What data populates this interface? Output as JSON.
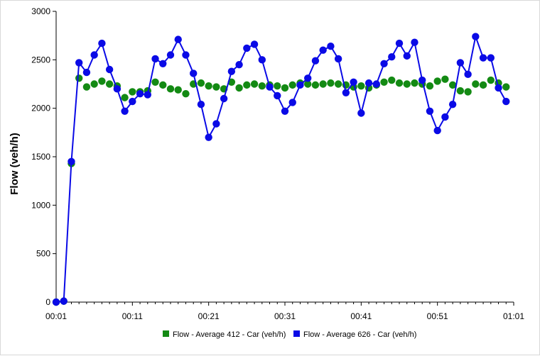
{
  "chart_data": {
    "type": "line",
    "title": "",
    "xlabel": "",
    "ylabel": "Flow (veh/h)",
    "ylim": [
      0,
      3000
    ],
    "yticks": [
      0,
      500,
      1000,
      1500,
      2000,
      2500,
      3000
    ],
    "xlim_minutes": [
      1,
      61
    ],
    "xticks": [
      {
        "value": 1,
        "label": "00:01"
      },
      {
        "value": 11,
        "label": "00:11"
      },
      {
        "value": 21,
        "label": "00:21"
      },
      {
        "value": 31,
        "label": "00:31"
      },
      {
        "value": 41,
        "label": "00:41"
      },
      {
        "value": 51,
        "label": "00:51"
      },
      {
        "value": 61,
        "label": "01:01"
      }
    ],
    "grid": false,
    "legend_position": "bottom",
    "x": [
      1,
      2,
      3,
      4,
      5,
      6,
      7,
      8,
      9,
      10,
      11,
      12,
      13,
      14,
      15,
      16,
      17,
      18,
      19,
      20,
      21,
      22,
      23,
      24,
      25,
      26,
      27,
      28,
      29,
      30,
      31,
      32,
      33,
      34,
      35,
      36,
      37,
      38,
      39,
      40,
      41,
      42,
      43,
      44,
      45,
      46,
      47,
      48,
      49,
      50,
      51,
      52,
      53,
      54,
      55,
      56,
      57,
      58,
      59,
      60
    ],
    "series": [
      {
        "name": "Flow - Average 412 - Car (veh/h)",
        "color": "#138a13",
        "line": false,
        "values": [
          0,
          10,
          1430,
          2310,
          2220,
          2250,
          2280,
          2250,
          2230,
          2110,
          2170,
          2170,
          2180,
          2270,
          2240,
          2200,
          2190,
          2150,
          2250,
          2260,
          2230,
          2220,
          2200,
          2270,
          2210,
          2240,
          2250,
          2230,
          2240,
          2230,
          2210,
          2240,
          2260,
          2250,
          2240,
          2250,
          2260,
          2250,
          2240,
          2220,
          2230,
          2210,
          2240,
          2270,
          2290,
          2260,
          2250,
          2260,
          2250,
          2230,
          2280,
          2300,
          2240,
          2180,
          2170,
          2250,
          2240,
          2290,
          2260,
          2220
        ]
      },
      {
        "name": "Flow - Average 626 - Car (veh/h)",
        "color": "#0a0ae6",
        "line": true,
        "values": [
          0,
          10,
          1450,
          2470,
          2370,
          2550,
          2670,
          2400,
          2200,
          1970,
          2070,
          2150,
          2140,
          2510,
          2460,
          2550,
          2710,
          2550,
          2360,
          2040,
          1700,
          1840,
          2100,
          2380,
          2450,
          2620,
          2660,
          2500,
          2220,
          2130,
          1970,
          2060,
          2240,
          2310,
          2490,
          2600,
          2640,
          2510,
          2160,
          2270,
          1950,
          2260,
          2250,
          2460,
          2530,
          2670,
          2540,
          2680,
          2290,
          1970,
          1770,
          1910,
          2040,
          2470,
          2350,
          2740,
          2520,
          2520,
          2210,
          2070
        ]
      }
    ]
  }
}
